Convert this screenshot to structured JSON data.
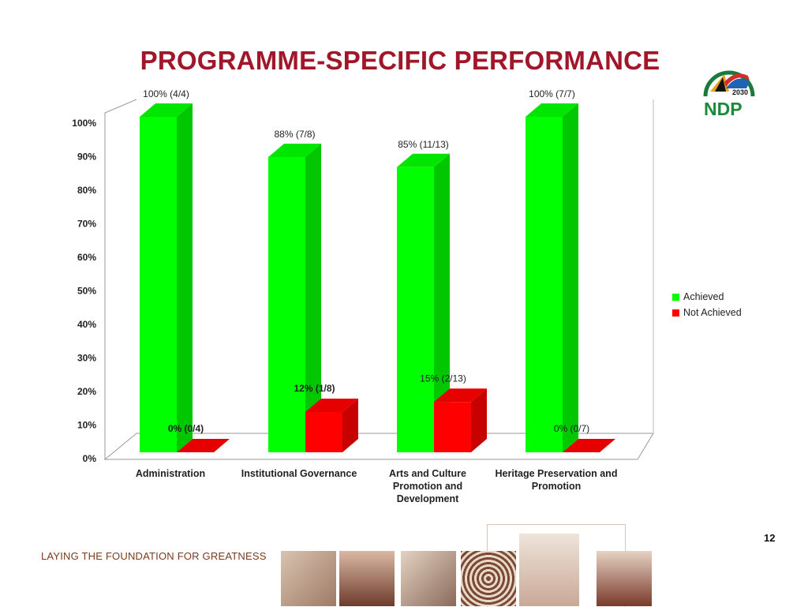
{
  "slide": {
    "title": "PROGRAMME-SPECIFIC PERFORMANCE",
    "page_number": "12",
    "footer_tagline": "LAYING THE FOUNDATION FOR GREATNESS",
    "logo": {
      "year": "2030",
      "wordmark": "NDP"
    }
  },
  "colors": {
    "title": "#A0172A",
    "achieved": "#00FF00",
    "not_achieved": "#FF0000",
    "tagline": "#7A3B1E"
  },
  "footer_images": [
    "writing-hands-image",
    "family-silhouette-image",
    "film-reel-image",
    "woven-basket-image",
    "ballet-shoes-image",
    "saxophone-player-image"
  ],
  "chart_data": {
    "type": "bar",
    "style": "3d-clustered-column",
    "categories": [
      [
        "Administration"
      ],
      [
        "Institutional Governance"
      ],
      [
        "Arts and Culture",
        "Promotion and",
        "Development"
      ],
      [
        "Heritage Preservation and",
        "Promotion"
      ]
    ],
    "series": [
      {
        "name": "Achieved",
        "color": "#00FF00",
        "values": [
          100,
          88,
          85,
          100
        ],
        "labels": [
          "100% (4/4)",
          "88% (7/8)",
          "85% (11/13)",
          "100% (7/7)"
        ]
      },
      {
        "name": "Not Achieved",
        "color": "#FF0000",
        "values": [
          0,
          12,
          15,
          0
        ],
        "labels": [
          "0% (0/4)",
          "12% (1/8)",
          "15% (2/13)",
          "0% (0/7)"
        ]
      }
    ],
    "yticks": [
      "0%",
      "10%",
      "20%",
      "30%",
      "40%",
      "50%",
      "60%",
      "70%",
      "80%",
      "90%",
      "100%"
    ],
    "ylim": [
      0,
      100
    ],
    "legend_position": "right"
  }
}
